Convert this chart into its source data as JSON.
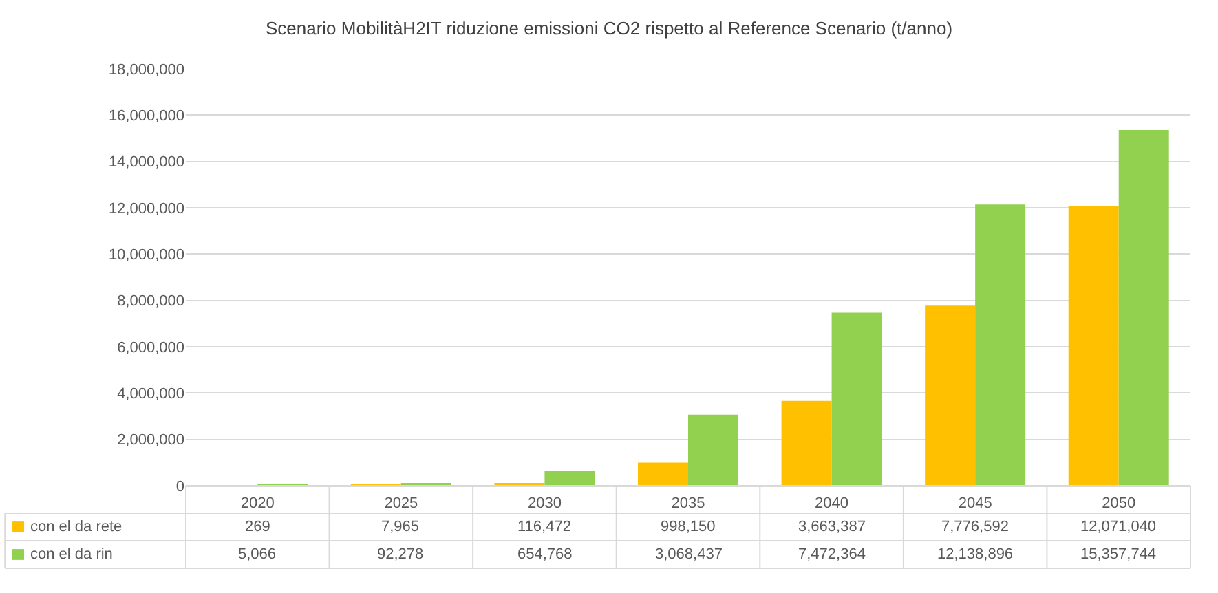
{
  "chart_data": {
    "type": "bar",
    "title": "Scenario MobilitàH2IT riduzione emissioni CO2 rispetto al Reference Scenario (t/anno)",
    "categories": [
      "2020",
      "2025",
      "2030",
      "2035",
      "2040",
      "2045",
      "2050"
    ],
    "series": [
      {
        "name": "con el da rete",
        "color": "#ffc000",
        "values": [
          269,
          7965,
          116472,
          998150,
          3663387,
          7776592,
          12071040
        ],
        "value_labels": [
          "269",
          "7,965",
          "116,472",
          "998,150",
          "3,663,387",
          "7,776,592",
          "12,071,040"
        ]
      },
      {
        "name": "con el da rin",
        "color": "#92d050",
        "values": [
          5066,
          92278,
          654768,
          3068437,
          7472364,
          12138896,
          15357744
        ],
        "value_labels": [
          "5,066",
          "92,278",
          "654,768",
          "3,068,437",
          "7,472,364",
          "12,138,896",
          "15,357,744"
        ]
      }
    ],
    "ylim": [
      0,
      18000000
    ],
    "yticks": [
      {
        "value": 0,
        "label": "0"
      },
      {
        "value": 2000000,
        "label": "2,000,000"
      },
      {
        "value": 4000000,
        "label": "4,000,000"
      },
      {
        "value": 6000000,
        "label": "6,000,000"
      },
      {
        "value": 8000000,
        "label": "8,000,000"
      },
      {
        "value": 10000000,
        "label": "10,000,000"
      },
      {
        "value": 12000000,
        "label": "12,000,000"
      },
      {
        "value": 14000000,
        "label": "14,000,000"
      },
      {
        "value": 16000000,
        "label": "16,000,000"
      },
      {
        "value": 18000000,
        "label": "18,000,000"
      }
    ],
    "grid": "y",
    "legend": "bottom left"
  }
}
